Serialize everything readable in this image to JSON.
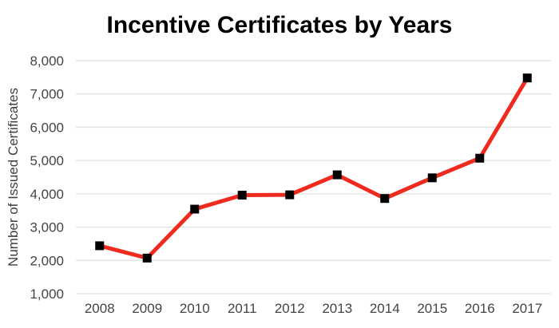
{
  "chart_data": {
    "type": "line",
    "title": "Incentive Certificates by Years",
    "xlabel": "",
    "ylabel": "Number of Issued Certificates",
    "categories": [
      "2008",
      "2009",
      "2010",
      "2011",
      "2012",
      "2013",
      "2014",
      "2015",
      "2016",
      "2017"
    ],
    "series": [
      {
        "name": "Number of Issued Certificates",
        "values": [
          2440,
          2070,
          3540,
          3960,
          3970,
          4570,
          3860,
          4480,
          5070,
          7480
        ]
      }
    ],
    "ylim": [
      1000,
      8000
    ],
    "ytick_step": 1000,
    "ytick_labels": [
      "1,000",
      "2,000",
      "3,000",
      "4,000",
      "5,000",
      "6,000",
      "7,000",
      "8,000"
    ],
    "grid": "horizontal",
    "legend": "none",
    "line_color": "#ee2b1e",
    "marker": "square",
    "marker_color": "#000000",
    "background_color": "#ffffff",
    "gridline_color": "#e4e4e4",
    "title_color": "#000000",
    "tick_color": "#444444"
  }
}
